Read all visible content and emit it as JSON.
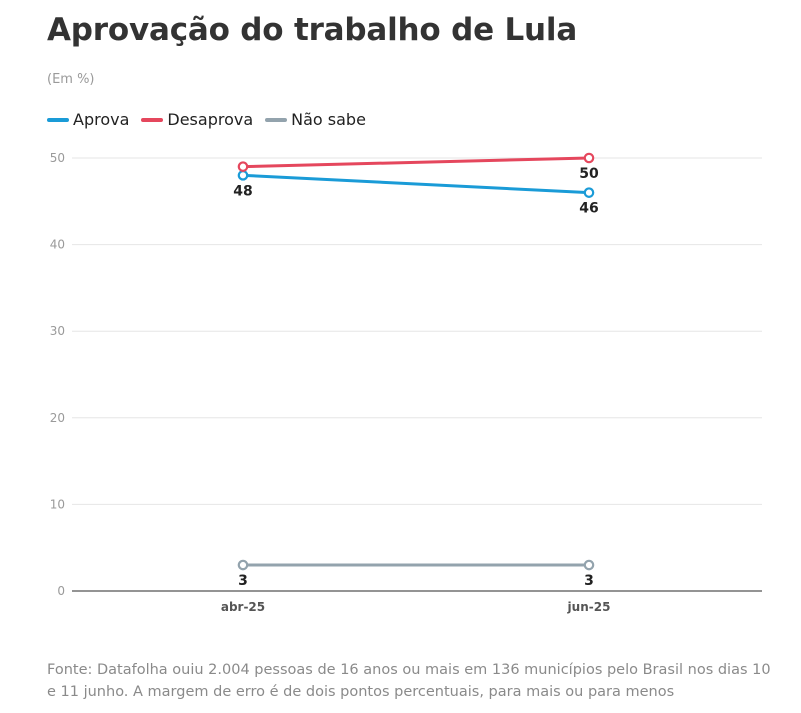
{
  "title": "Aprovação do trabalho de Lula",
  "subtitle": "(Em %)",
  "source": "Fonte: Datafolha ouiu 2.004 pessoas de 16 anos ou mais em 136 municípios pelo Brasil nos dias 10 e 11 junho. A margem de erro é de dois pontos percentuais, para mais ou para menos",
  "legend": [
    {
      "label": "Aprova",
      "color": "#1a9bd7"
    },
    {
      "label": "Desaprova",
      "color": "#e5475d"
    },
    {
      "label": "Não sabe",
      "color": "#93a3ad"
    }
  ],
  "chart_data": {
    "type": "line",
    "title": "Aprovação do trabalho de Lula",
    "subtitle": "(Em %)",
    "categories": [
      "abr-25",
      "jun-25"
    ],
    "ylim": [
      0,
      50
    ],
    "yticks": [
      0,
      10,
      20,
      30,
      40,
      50
    ],
    "grid": true,
    "legend_position": "top-left",
    "series": [
      {
        "name": "Aprova",
        "color": "#1a9bd7",
        "values": [
          48,
          46
        ],
        "labels": [
          "48",
          "46"
        ],
        "label_position": "below"
      },
      {
        "name": "Desaprova",
        "color": "#e5475d",
        "values": [
          49,
          50
        ],
        "labels": [
          "",
          "50"
        ],
        "label_position": "below"
      },
      {
        "name": "Não sabe",
        "color": "#93a3ad",
        "values": [
          3,
          3
        ],
        "labels": [
          "3",
          "3"
        ],
        "label_position": "below"
      }
    ]
  }
}
